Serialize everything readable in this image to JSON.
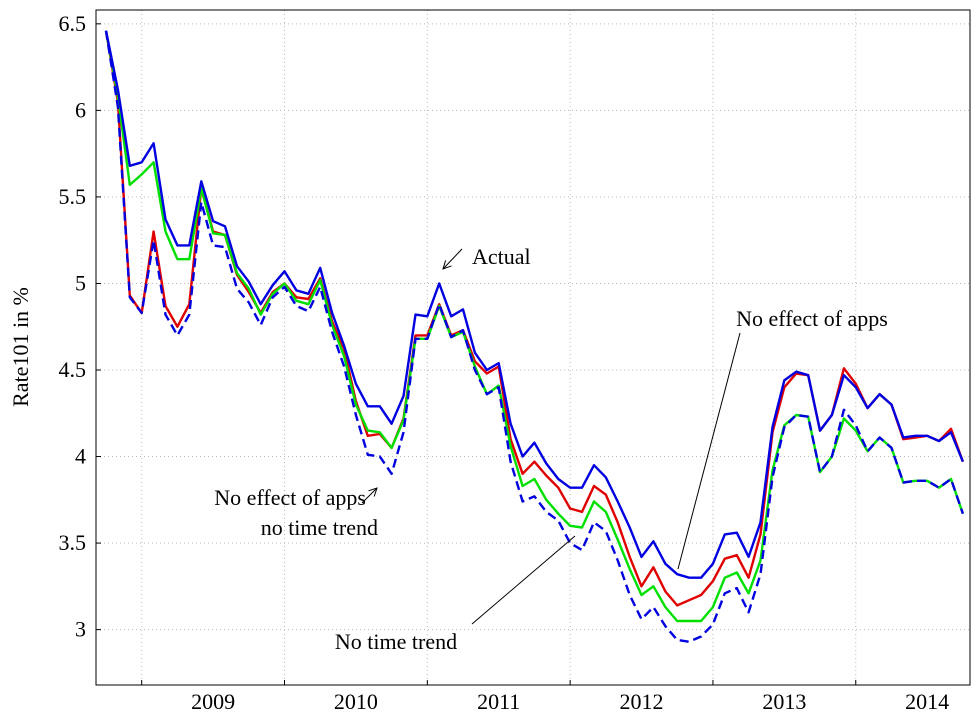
{
  "chart_data": {
    "type": "line",
    "y_label": "Rate101 in %",
    "x": [
      2008.75,
      2008.833,
      2008.917,
      2009,
      2009.083,
      2009.167,
      2009.25,
      2009.333,
      2009.417,
      2009.5,
      2009.583,
      2009.667,
      2009.75,
      2009.833,
      2009.917,
      2010,
      2010.083,
      2010.167,
      2010.25,
      2010.333,
      2010.417,
      2010.5,
      2010.583,
      2010.667,
      2010.75,
      2010.833,
      2010.917,
      2011,
      2011.083,
      2011.167,
      2011.25,
      2011.333,
      2011.417,
      2011.5,
      2011.583,
      2011.667,
      2011.75,
      2011.833,
      2011.917,
      2012,
      2012.083,
      2012.167,
      2012.25,
      2012.333,
      2012.417,
      2012.5,
      2012.583,
      2012.667,
      2012.75,
      2012.833,
      2012.917,
      2013,
      2013.083,
      2013.167,
      2013.25,
      2013.333,
      2013.417,
      2013.5,
      2013.583,
      2013.667,
      2013.75,
      2013.833,
      2013.917,
      2014,
      2014.083,
      2014.167,
      2014.25,
      2014.333,
      2014.417,
      2014.5,
      2014.583,
      2014.667,
      2014.75
    ],
    "series": [
      {
        "color": "#e00000",
        "dash": false,
        "values": [
          6.46,
          6.05,
          4.93,
          4.83,
          5.3,
          4.87,
          4.75,
          4.88,
          5.55,
          5.3,
          5.28,
          5.05,
          4.95,
          4.83,
          4.95,
          5.0,
          4.92,
          4.91,
          5.03,
          4.78,
          4.62,
          4.32,
          4.12,
          4.13,
          4.05,
          4.22,
          4.7,
          4.7,
          4.88,
          4.7,
          4.73,
          4.55,
          4.48,
          4.52,
          4.1,
          3.9,
          3.97,
          3.89,
          3.82,
          3.7,
          3.68,
          3.83,
          3.78,
          3.62,
          3.42,
          3.25,
          3.36,
          3.22,
          3.14,
          3.17,
          3.2,
          3.28,
          3.41,
          3.43,
          3.3,
          3.55,
          4.14,
          4.4,
          4.48,
          4.47,
          4.15,
          4.24,
          4.51,
          4.42,
          4.28,
          4.36,
          4.3,
          4.1,
          4.11,
          4.12,
          4.09,
          4.16,
          3.97
        ]
      },
      {
        "color": "#00e000",
        "dash": false,
        "values": [
          6.46,
          6.08,
          5.57,
          5.63,
          5.7,
          5.3,
          5.14,
          5.14,
          5.55,
          5.29,
          5.28,
          5.06,
          4.97,
          4.82,
          4.94,
          5.0,
          4.9,
          4.88,
          5.02,
          4.76,
          4.58,
          4.3,
          4.15,
          4.14,
          4.05,
          4.21,
          4.68,
          4.68,
          4.87,
          4.69,
          4.72,
          4.52,
          4.36,
          4.41,
          4.06,
          3.83,
          3.87,
          3.75,
          3.67,
          3.6,
          3.59,
          3.74,
          3.68,
          3.52,
          3.35,
          3.2,
          3.25,
          3.13,
          3.05,
          3.05,
          3.05,
          3.13,
          3.3,
          3.33,
          3.21,
          3.4,
          3.92,
          4.18,
          4.24,
          4.23,
          3.91,
          4.0,
          4.22,
          4.15,
          4.03,
          4.11,
          4.05,
          3.85,
          3.86,
          3.86,
          3.82,
          3.87,
          3.67
        ]
      },
      {
        "color": "#0000e0",
        "dash": true,
        "values": [
          6.46,
          6.02,
          4.92,
          4.83,
          5.25,
          4.82,
          4.7,
          4.82,
          5.47,
          5.22,
          5.21,
          4.97,
          4.89,
          4.76,
          4.92,
          4.98,
          4.87,
          4.84,
          4.98,
          4.72,
          4.52,
          4.24,
          4.01,
          4.0,
          3.9,
          4.14,
          4.68,
          4.68,
          4.88,
          4.69,
          4.73,
          4.5,
          4.36,
          4.4,
          3.97,
          3.74,
          3.77,
          3.68,
          3.63,
          3.5,
          3.46,
          3.62,
          3.57,
          3.4,
          3.2,
          3.06,
          3.13,
          3.02,
          2.94,
          2.93,
          2.96,
          3.03,
          3.21,
          3.24,
          3.1,
          3.32,
          3.88,
          4.17,
          4.24,
          4.23,
          3.91,
          4.0,
          4.27,
          4.18,
          4.03,
          4.11,
          4.05,
          3.85,
          3.86,
          3.86,
          3.82,
          3.87,
          3.67
        ]
      },
      {
        "color": "#0000e0",
        "dash": false,
        "values": [
          6.46,
          6.12,
          5.68,
          5.7,
          5.81,
          5.37,
          5.22,
          5.22,
          5.59,
          5.36,
          5.33,
          5.1,
          5.01,
          4.88,
          4.99,
          5.07,
          4.96,
          4.94,
          5.09,
          4.83,
          4.64,
          4.42,
          4.29,
          4.29,
          4.19,
          4.35,
          4.82,
          4.81,
          5.0,
          4.81,
          4.85,
          4.6,
          4.5,
          4.54,
          4.19,
          4.0,
          4.08,
          3.96,
          3.87,
          3.82,
          3.82,
          3.95,
          3.88,
          3.74,
          3.59,
          3.42,
          3.51,
          3.38,
          3.32,
          3.3,
          3.3,
          3.38,
          3.55,
          3.56,
          3.42,
          3.62,
          4.17,
          4.44,
          4.49,
          4.47,
          4.15,
          4.24,
          4.47,
          4.4,
          4.28,
          4.36,
          4.3,
          4.11,
          4.12,
          4.12,
          4.09,
          4.14,
          3.97
        ]
      }
    ],
    "annotations": [
      "Actual",
      "No effect of apps",
      "No effect of apps",
      "no time trend",
      "No time trend"
    ],
    "xlim": [
      2008.68,
      2014.8
    ],
    "xticks": [
      2009,
      2010,
      2011,
      2012,
      2013,
      2014
    ],
    "ylim": [
      2.68,
      6.58
    ],
    "yticks": [
      3,
      3.5,
      4,
      4.5,
      5,
      5.5,
      6,
      6.5
    ],
    "grid": true
  }
}
